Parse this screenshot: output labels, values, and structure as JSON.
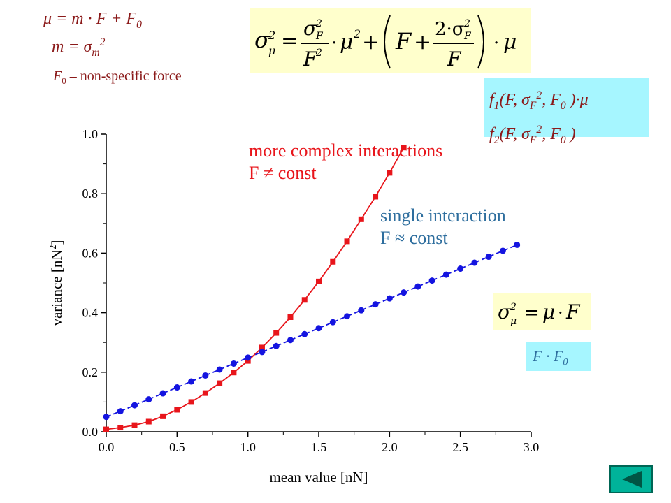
{
  "formulas": {
    "mu_line": "μ = m · F + F",
    "mu_line_sub": "0",
    "m_line": "m = σ",
    "m_line_sub": "m",
    "m_line_sup": "2",
    "f0_symbol": "F",
    "f0_sub": "0",
    "f0_desc": " – non-specific force",
    "f1_text": "f",
    "f1_sub": "1",
    "f1_args_a": "(F, σ",
    "f1_args_sub": "F",
    "f1_args_sup": "2",
    "f1_args_b": ", F",
    "f1_args_sub0": "0",
    "f1_args_c": " )·μ",
    "f2_text": "f",
    "f2_sub": "2",
    "f2_args_a": "(F, σ",
    "f2_args_sub": "F",
    "f2_args_sup": "2",
    "f2_args_b": ", F",
    "f2_args_sub0": "0",
    "f2_args_c": " )",
    "ff_text": "F · F",
    "ff_sub": "0"
  },
  "annotations": {
    "red_line1": "more complex interactions",
    "red_line2": "F ≠ const",
    "blue_line1": "single interaction",
    "blue_line2": "F ≈ const"
  },
  "colors": {
    "red_series": "#E8151B",
    "blue_series": "#1414E0",
    "dark_red_text": "#8B1A1A",
    "blue_text": "#2E6E9E",
    "yellow_box": "#FFFFCC",
    "cyan_box": "#A6F6FF",
    "nav_button": "#00B39A"
  },
  "nav": {
    "icon": "triangle-left-icon"
  },
  "chart_data": {
    "type": "line",
    "xlabel": "mean value [nN]",
    "ylabel": "variance [nN",
    "ylabel_sup": "2",
    "ylabel_end": "]",
    "xlim": [
      0,
      3.0
    ],
    "ylim": [
      0,
      1.0
    ],
    "xticks": [
      "0.0",
      "0.5",
      "1.0",
      "1.5",
      "2.0",
      "2.5",
      "3.0"
    ],
    "yticks": [
      "0.0",
      "0.2",
      "0.4",
      "0.6",
      "0.8",
      "1.0"
    ],
    "series": [
      {
        "color": "#E8151B",
        "marker": "square",
        "x": [
          0.0,
          0.1,
          0.2,
          0.3,
          0.4,
          0.5,
          0.6,
          0.7,
          0.8,
          0.9,
          1.0,
          1.1,
          1.2,
          1.3,
          1.4,
          1.5,
          1.6,
          1.7,
          1.8,
          1.9,
          2.0,
          2.1
        ],
        "y": [
          0.008,
          0.014,
          0.022,
          0.034,
          0.052,
          0.074,
          0.1,
          0.13,
          0.163,
          0.199,
          0.238,
          0.283,
          0.332,
          0.385,
          0.443,
          0.505,
          0.571,
          0.64,
          0.714,
          0.79,
          0.87,
          0.955
        ]
      },
      {
        "color": "#1414E0",
        "marker": "circle",
        "x": [
          0.0,
          0.1,
          0.2,
          0.3,
          0.4,
          0.5,
          0.6,
          0.7,
          0.8,
          0.9,
          1.0,
          1.1,
          1.2,
          1.3,
          1.4,
          1.5,
          1.6,
          1.7,
          1.8,
          1.9,
          2.0,
          2.1,
          2.2,
          2.3,
          2.4,
          2.5,
          2.6,
          2.7,
          2.8,
          2.9
        ],
        "y": [
          0.05,
          0.069,
          0.089,
          0.109,
          0.129,
          0.149,
          0.169,
          0.189,
          0.209,
          0.229,
          0.249,
          0.268,
          0.288,
          0.308,
          0.328,
          0.348,
          0.368,
          0.388,
          0.408,
          0.428,
          0.448,
          0.468,
          0.488,
          0.508,
          0.528,
          0.548,
          0.568,
          0.588,
          0.608,
          0.628
        ]
      }
    ]
  }
}
